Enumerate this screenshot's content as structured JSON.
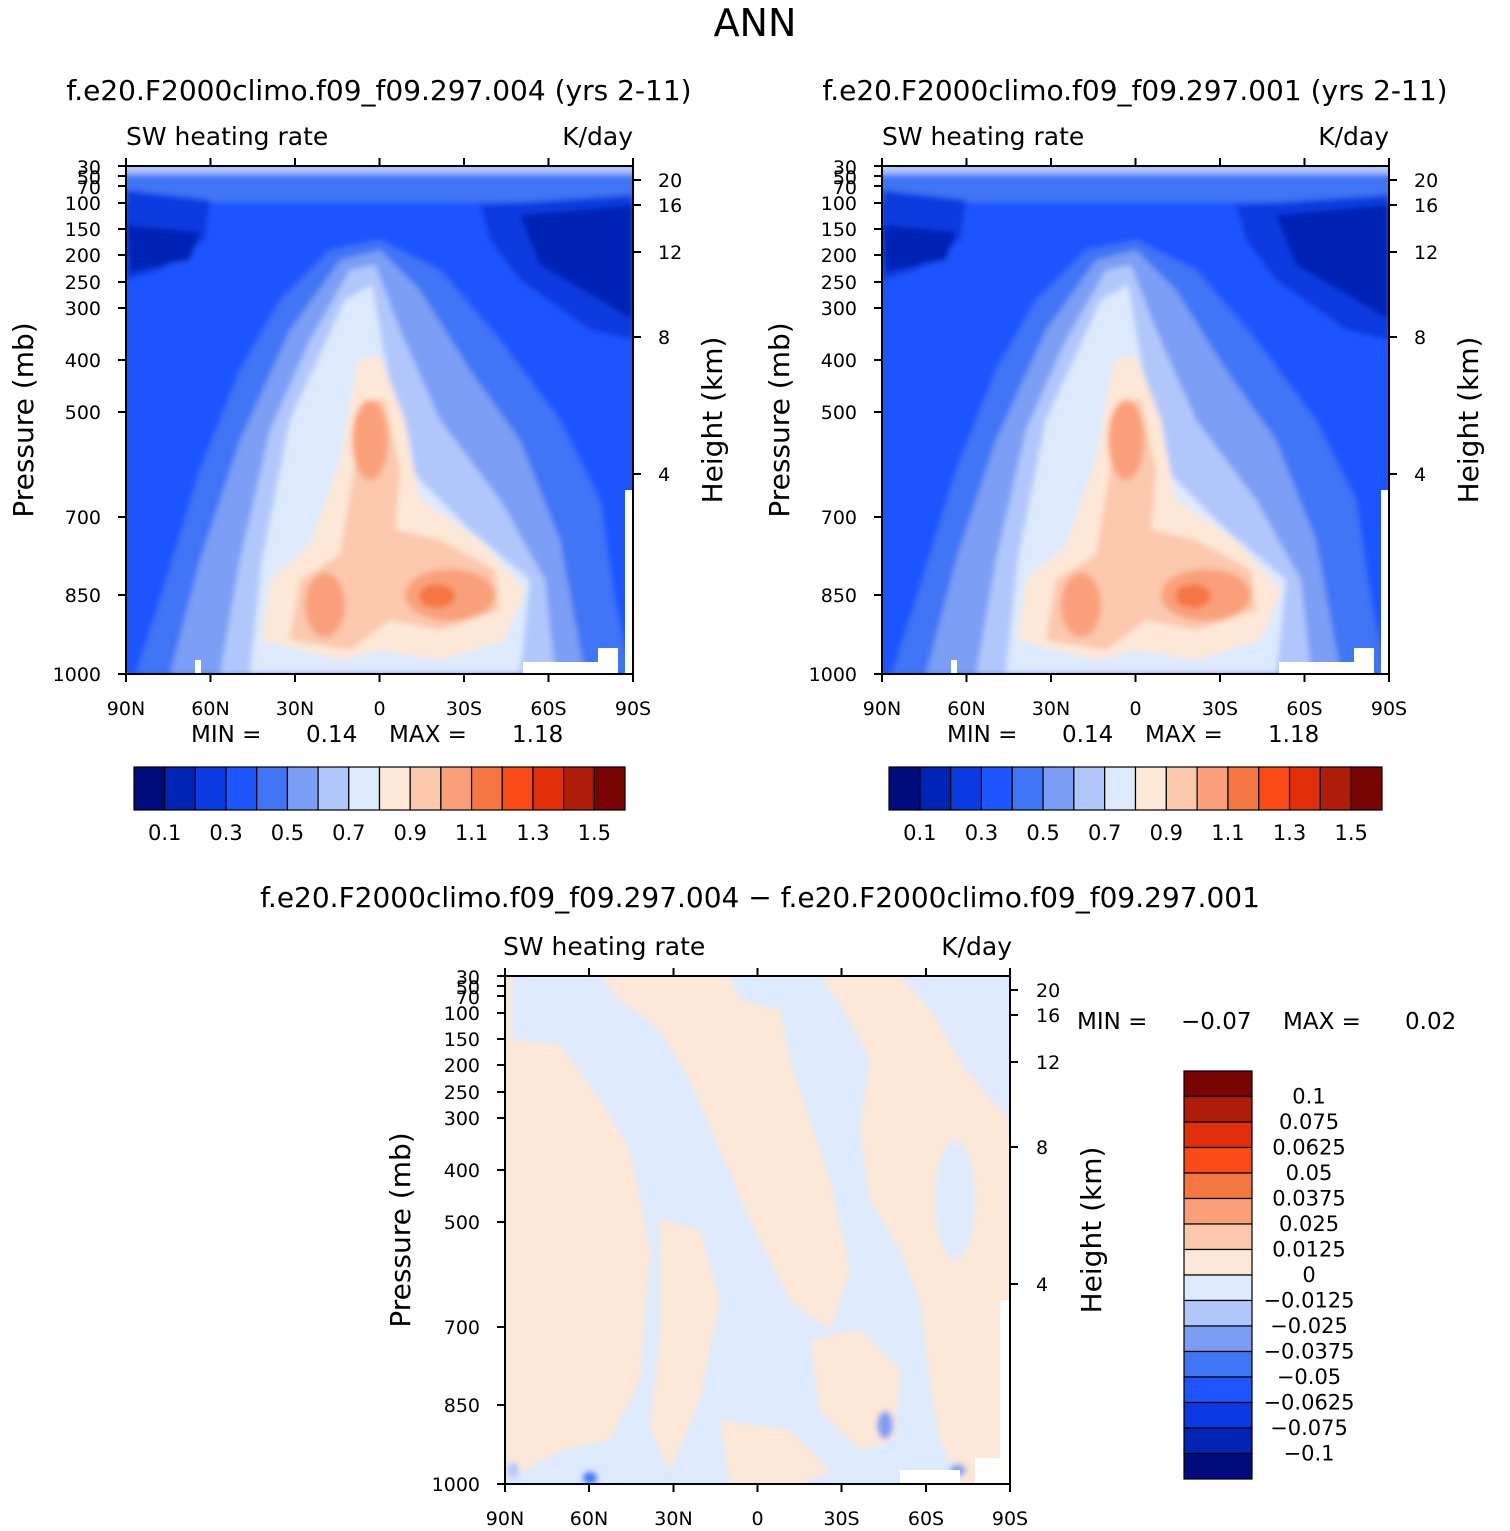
{
  "figure_title": "ANN",
  "chart_data": [
    {
      "type": "contour",
      "case_title": "f.e20.F2000climo.f09_f09.297.004 (yrs 2-11)",
      "variable": "SW heating rate",
      "units": "K/day",
      "ylabel": "Pressure (mb)",
      "ylabel_right": "Height (km)",
      "xticks": [
        "90N",
        "60N",
        "30N",
        "0",
        "30S",
        "60S",
        "90S"
      ],
      "pressure_ticks": [
        30,
        50,
        70,
        100,
        150,
        200,
        250,
        300,
        400,
        500,
        700,
        850,
        1000
      ],
      "height_ticks": [
        20,
        16,
        12,
        8,
        4
      ],
      "xlim": [
        "90N",
        "90S"
      ],
      "ylim": [
        30,
        1000
      ],
      "min_label": "MIN =",
      "min": "0.14",
      "max_label": "MAX =",
      "max": "1.18",
      "colorbar_levels": [
        "0.1",
        "0.3",
        "0.5",
        "0.7",
        "0.9",
        "1.1",
        "1.3",
        "1.5"
      ],
      "colorbar_colors": [
        "#000c7d",
        "#0024b4",
        "#0b3ae0",
        "#1f55ff",
        "#3f74f5",
        "#7b9ef4",
        "#b1c7fc",
        "#dde9fd",
        "#fde7d6",
        "#fbc7ad",
        "#f9a07a",
        "#f47642",
        "#fa4a15",
        "#e02f0a",
        "#b01c0a",
        "#7a0303"
      ]
    },
    {
      "type": "contour",
      "case_title": "f.e20.F2000climo.f09_f09.297.001 (yrs 2-11)",
      "variable": "SW heating rate",
      "units": "K/day",
      "ylabel": "Pressure (mb)",
      "ylabel_right": "Height (km)",
      "xticks": [
        "90N",
        "60N",
        "30N",
        "0",
        "30S",
        "60S",
        "90S"
      ],
      "pressure_ticks": [
        30,
        50,
        70,
        100,
        150,
        200,
        250,
        300,
        400,
        500,
        700,
        850,
        1000
      ],
      "height_ticks": [
        20,
        16,
        12,
        8,
        4
      ],
      "xlim": [
        "90N",
        "90S"
      ],
      "ylim": [
        30,
        1000
      ],
      "min_label": "MIN =",
      "min": "0.14",
      "max_label": "MAX =",
      "max": "1.18",
      "colorbar_levels": [
        "0.1",
        "0.3",
        "0.5",
        "0.7",
        "0.9",
        "1.1",
        "1.3",
        "1.5"
      ],
      "colorbar_colors": [
        "#000c7d",
        "#0024b4",
        "#0b3ae0",
        "#1f55ff",
        "#3f74f5",
        "#7b9ef4",
        "#b1c7fc",
        "#dde9fd",
        "#fde7d6",
        "#fbc7ad",
        "#f9a07a",
        "#f47642",
        "#fa4a15",
        "#e02f0a",
        "#b01c0a",
        "#7a0303"
      ]
    },
    {
      "type": "contour",
      "case_title": "f.e20.F2000climo.f09_f09.297.004 − f.e20.F2000climo.f09_f09.297.001",
      "variable": "SW heating rate",
      "units": "K/day",
      "ylabel": "Pressure (mb)",
      "ylabel_right": "Height (km)",
      "xticks": [
        "90N",
        "60N",
        "30N",
        "0",
        "30S",
        "60S",
        "90S"
      ],
      "pressure_ticks": [
        30,
        50,
        70,
        100,
        150,
        200,
        250,
        300,
        400,
        500,
        700,
        850,
        1000
      ],
      "height_ticks": [
        20,
        16,
        12,
        8,
        4
      ],
      "xlim": [
        "90N",
        "90S"
      ],
      "ylim": [
        30,
        1000
      ],
      "min_label": "MIN =",
      "min": "−0.07",
      "max_label": "MAX =",
      "max": "0.02",
      "colorbar_levels": [
        "0.1",
        "0.075",
        "0.0625",
        "0.05",
        "0.0375",
        "0.025",
        "0.0125",
        "0",
        "−0.0125",
        "−0.025",
        "−0.0375",
        "−0.05",
        "−0.0625",
        "−0.075",
        "−0.1"
      ],
      "colorbar_colors": [
        "#7a0303",
        "#b01c0a",
        "#e02f0a",
        "#fa4a15",
        "#f47642",
        "#f9a07a",
        "#fbc7ad",
        "#fde7d6",
        "#dde9fd",
        "#b1c7fc",
        "#7b9ef4",
        "#3f74f5",
        "#1f55ff",
        "#0b3ae0",
        "#0024b4",
        "#000c7d"
      ]
    }
  ]
}
